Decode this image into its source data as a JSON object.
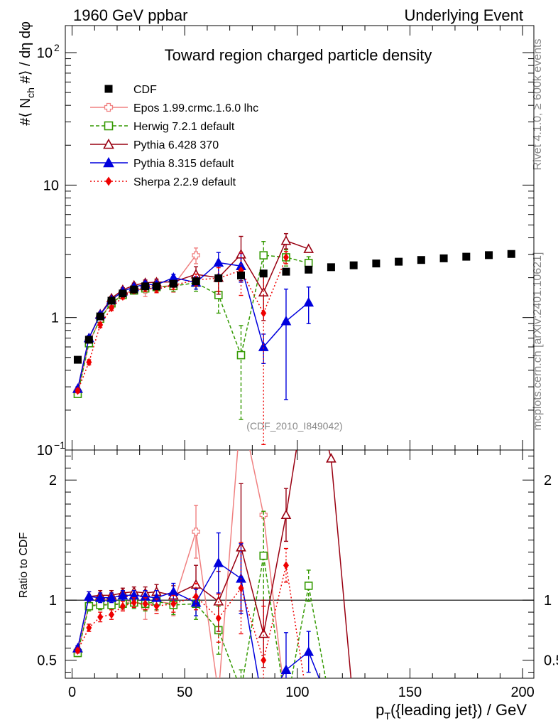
{
  "header": {
    "left": "1960 GeV ppbar",
    "right": "Underlying Event"
  },
  "side_labels": {
    "top": "Rivet 4.1.0, ≥ 600k events",
    "bottom": "mcplots.cern.ch [arXiv:2401.10621]"
  },
  "watermark": "(CDF_2010_I849042)",
  "chart_data": {
    "type": "line",
    "title": "Toward region charged particle density",
    "xlabel": "p_T({leading jet}) / GeV",
    "ylabel": "#⟨ N_ch #⟩ / dη dφ",
    "ratio_ylabel": "Ratio to CDF",
    "xlim": [
      -3,
      205
    ],
    "ylim": [
      0.1,
      160
    ],
    "yscale": "log",
    "ratio_ylim": [
      0.35,
      2.25
    ],
    "xticks": [
      "0",
      "50",
      "100",
      "150",
      "200"
    ],
    "yticks": [
      {
        "value": 100,
        "label": "10",
        "exp": "2"
      },
      {
        "value": 10,
        "label": "10",
        "exp": ""
      },
      {
        "value": 1,
        "label": "1",
        "exp": ""
      },
      {
        "value": 0.1,
        "label": "10",
        "exp": "−1"
      }
    ],
    "ratio_yticks": [
      {
        "value": 2,
        "label": "2"
      },
      {
        "value": 1,
        "label": "1"
      },
      {
        "value": 0.5,
        "label": "0.5"
      }
    ],
    "series": [
      {
        "name": "CDF",
        "color": "#000000",
        "marker": "square-filled",
        "dash": "none",
        "points": [
          [
            2.5,
            0.48
          ],
          [
            7.5,
            0.68
          ],
          [
            12.5,
            1.02
          ],
          [
            17.5,
            1.34
          ],
          [
            22.5,
            1.52
          ],
          [
            27.5,
            1.63
          ],
          [
            32.5,
            1.72
          ],
          [
            37.5,
            1.72
          ],
          [
            45,
            1.8
          ],
          [
            55,
            1.88
          ],
          [
            65,
            1.98
          ],
          [
            75,
            2.08
          ],
          [
            85,
            2.15
          ],
          [
            95,
            2.22
          ],
          [
            105,
            2.3
          ],
          [
            115,
            2.4
          ],
          [
            125,
            2.48
          ],
          [
            135,
            2.56
          ],
          [
            145,
            2.64
          ],
          [
            155,
            2.72
          ],
          [
            165,
            2.8
          ],
          [
            175,
            2.88
          ],
          [
            185,
            2.96
          ],
          [
            195,
            3.02
          ]
        ]
      },
      {
        "name": "Epos 1.99.crmc.1.6.0 lhc",
        "color": "#f08080",
        "marker": "cross-open",
        "dash": "none",
        "points": [
          [
            2.5,
            0.27,
            0.02
          ],
          [
            7.5,
            0.64,
            0.03
          ],
          [
            12.5,
            0.98,
            0.05
          ],
          [
            17.5,
            1.3,
            0.06
          ],
          [
            22.5,
            1.48,
            0.07
          ],
          [
            27.5,
            1.63,
            0.1
          ],
          [
            32.5,
            1.62,
            0.18
          ],
          [
            37.5,
            1.7,
            0.15
          ],
          [
            45,
            1.75,
            0.2
          ],
          [
            55,
            2.95,
            0.4
          ]
        ]
      },
      {
        "name": "Herwig 7.2.1 default",
        "color": "#339900",
        "marker": "square-open",
        "dash": "5,3",
        "points": [
          [
            2.5,
            0.265,
            0.01
          ],
          [
            7.5,
            0.64,
            0.03
          ],
          [
            12.5,
            0.98,
            0.05
          ],
          [
            17.5,
            1.28,
            0.06
          ],
          [
            22.5,
            1.48,
            0.06
          ],
          [
            27.5,
            1.6,
            0.08
          ],
          [
            32.5,
            1.66,
            0.1
          ],
          [
            37.5,
            1.7,
            0.12
          ],
          [
            45,
            1.73,
            0.15
          ],
          [
            55,
            1.83,
            0.25
          ],
          [
            65,
            1.48,
            0.4
          ],
          [
            75,
            0.52,
            0.35
          ],
          [
            85,
            2.95,
            0.8
          ],
          [
            95,
            2.85,
            0.4
          ],
          [
            105,
            2.58,
            0.3
          ]
        ]
      },
      {
        "name": "Pythia 6.428 370",
        "color": "#990011",
        "marker": "triangle-open",
        "dash": "none",
        "points": [
          [
            2.5,
            0.29,
            0.01
          ],
          [
            7.5,
            0.7,
            0.03
          ],
          [
            12.5,
            1.06,
            0.04
          ],
          [
            17.5,
            1.4,
            0.05
          ],
          [
            22.5,
            1.62,
            0.06
          ],
          [
            27.5,
            1.75,
            0.07
          ],
          [
            32.5,
            1.83,
            0.09
          ],
          [
            37.5,
            1.85,
            0.1
          ],
          [
            45,
            1.86,
            0.15
          ],
          [
            55,
            2.12,
            0.3
          ],
          [
            65,
            2.0,
            0.5
          ],
          [
            75,
            3.0,
            1.1
          ],
          [
            85,
            1.55,
            0.6
          ],
          [
            95,
            3.8,
            0.5
          ],
          [
            105,
            3.3,
            0.0
          ]
        ]
      },
      {
        "name": "Pythia 8.315 default",
        "color": "#0000dd",
        "marker": "triangle-filled",
        "dash": "none",
        "points": [
          [
            2.5,
            0.29,
            0.01
          ],
          [
            7.5,
            0.7,
            0.03
          ],
          [
            12.5,
            1.05,
            0.04
          ],
          [
            17.5,
            1.36,
            0.05
          ],
          [
            22.5,
            1.58,
            0.06
          ],
          [
            27.5,
            1.7,
            0.07
          ],
          [
            32.5,
            1.78,
            0.09
          ],
          [
            37.5,
            1.77,
            0.1
          ],
          [
            45,
            2.0,
            0.12
          ],
          [
            55,
            1.84,
            0.2
          ],
          [
            65,
            2.6,
            0.5
          ],
          [
            75,
            2.45,
            0.6
          ],
          [
            85,
            0.6,
            0.15
          ],
          [
            95,
            0.94,
            0.7
          ],
          [
            105,
            1.3,
            0.4
          ]
        ]
      },
      {
        "name": "Sherpa 2.2.9 default",
        "color": "#ee0000",
        "marker": "diamond-filled",
        "dash": "2,3",
        "points": [
          [
            2.5,
            0.28,
            0.01
          ],
          [
            7.5,
            0.46,
            0.02
          ],
          [
            12.5,
            0.88,
            0.04
          ],
          [
            17.5,
            1.18,
            0.05
          ],
          [
            22.5,
            1.44,
            0.06
          ],
          [
            27.5,
            1.6,
            0.07
          ],
          [
            32.5,
            1.66,
            0.09
          ],
          [
            37.5,
            1.64,
            0.1
          ],
          [
            45,
            1.75,
            0.12
          ],
          [
            55,
            1.93,
            0.2
          ],
          [
            65,
            1.98,
            0.4
          ],
          [
            75,
            2.27,
            0.8
          ],
          [
            85,
            1.08,
            0.97
          ],
          [
            95,
            2.85,
            0.3
          ]
        ]
      }
    ],
    "ratio_series": [
      {
        "name": "Epos 1.99.crmc.1.6.0 lhc",
        "color": "#f08080",
        "marker": "cross-open",
        "dash": "none",
        "points": [
          [
            2.5,
            0.56,
            0.03
          ],
          [
            7.5,
            0.96,
            0.04
          ],
          [
            12.5,
            0.96,
            0.04
          ],
          [
            17.5,
            0.97,
            0.04
          ],
          [
            22.5,
            0.97,
            0.05
          ],
          [
            27.5,
            1.0,
            0.05
          ],
          [
            32.5,
            0.94,
            0.1
          ],
          [
            37.5,
            0.99,
            0.08
          ],
          [
            45,
            0.97,
            0.1
          ],
          [
            55,
            1.57,
            0.22
          ],
          [
            65,
            0.22,
            0.0
          ],
          [
            75,
            2.6,
            0.0
          ],
          [
            85,
            1.71,
            0.0
          ],
          [
            95,
            0.1,
            0.0
          ]
        ]
      },
      {
        "name": "Herwig 7.2.1 default",
        "color": "#339900",
        "marker": "square-open",
        "dash": "5,3",
        "points": [
          [
            2.5,
            0.56,
            0.02
          ],
          [
            7.5,
            0.95,
            0.04
          ],
          [
            12.5,
            0.96,
            0.04
          ],
          [
            17.5,
            0.96,
            0.04
          ],
          [
            22.5,
            0.97,
            0.04
          ],
          [
            27.5,
            0.98,
            0.05
          ],
          [
            32.5,
            0.97,
            0.06
          ],
          [
            37.5,
            0.99,
            0.07
          ],
          [
            45,
            0.96,
            0.08
          ],
          [
            55,
            0.97,
            0.13
          ],
          [
            65,
            0.75,
            0.2
          ],
          [
            75,
            0.25,
            0.17
          ],
          [
            85,
            1.37,
            0.37
          ],
          [
            95,
            0.1,
            0.0
          ],
          [
            105,
            1.12,
            0.13
          ],
          [
            115,
            0.1,
            0.0
          ]
        ]
      },
      {
        "name": "Pythia 6.428 370",
        "color": "#990011",
        "marker": "triangle-open",
        "dash": "none",
        "points": [
          [
            2.5,
            0.6,
            0.02
          ],
          [
            7.5,
            1.03,
            0.04
          ],
          [
            12.5,
            1.04,
            0.04
          ],
          [
            17.5,
            1.04,
            0.04
          ],
          [
            22.5,
            1.06,
            0.04
          ],
          [
            27.5,
            1.07,
            0.04
          ],
          [
            32.5,
            1.06,
            0.05
          ],
          [
            37.5,
            1.07,
            0.06
          ],
          [
            45,
            1.04,
            0.08
          ],
          [
            55,
            1.13,
            0.16
          ],
          [
            65,
            0.99,
            0.25
          ],
          [
            75,
            1.44,
            0.53
          ],
          [
            85,
            0.72,
            0.28
          ],
          [
            95,
            1.71,
            0.22
          ],
          [
            105,
            2.9,
            0.0
          ],
          [
            115,
            2.18,
            0.0
          ],
          [
            125,
            0.1,
            0.0
          ]
        ]
      },
      {
        "name": "Pythia 8.315 default",
        "color": "#0000dd",
        "marker": "triangle-filled",
        "dash": "none",
        "points": [
          [
            2.5,
            0.6,
            0.02
          ],
          [
            7.5,
            1.03,
            0.04
          ],
          [
            12.5,
            1.02,
            0.04
          ],
          [
            17.5,
            1.02,
            0.04
          ],
          [
            22.5,
            1.04,
            0.04
          ],
          [
            27.5,
            1.04,
            0.04
          ],
          [
            32.5,
            1.03,
            0.05
          ],
          [
            37.5,
            1.02,
            0.06
          ],
          [
            45,
            1.07,
            0.07
          ],
          [
            55,
            0.98,
            0.11
          ],
          [
            65,
            1.31,
            0.25
          ],
          [
            75,
            1.18,
            0.29
          ],
          [
            85,
            0.1,
            0.0
          ],
          [
            95,
            0.42,
            0.31
          ],
          [
            105,
            0.57,
            0.17
          ],
          [
            115,
            0.1,
            0.0
          ]
        ]
      },
      {
        "name": "Sherpa 2.2.9 default",
        "color": "#ee0000",
        "marker": "diamond-filled",
        "dash": "2,3",
        "points": [
          [
            2.5,
            0.58,
            0.02
          ],
          [
            7.5,
            0.77,
            0.03
          ],
          [
            12.5,
            0.86,
            0.04
          ],
          [
            17.5,
            0.88,
            0.04
          ],
          [
            22.5,
            0.95,
            0.04
          ],
          [
            27.5,
            0.98,
            0.04
          ],
          [
            32.5,
            0.97,
            0.05
          ],
          [
            37.5,
            0.95,
            0.06
          ],
          [
            45,
            0.97,
            0.07
          ],
          [
            55,
            1.03,
            0.11
          ],
          [
            65,
            0.85,
            0.2
          ],
          [
            75,
            1.1,
            0.38
          ],
          [
            85,
            0.5,
            0.45
          ],
          [
            95,
            1.29,
            0.14
          ],
          [
            105,
            0.1,
            0.0
          ]
        ]
      }
    ]
  }
}
